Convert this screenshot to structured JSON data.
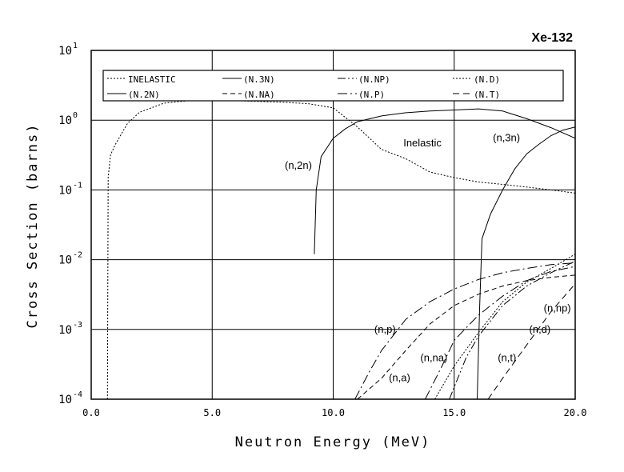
{
  "chart_data": {
    "type": "line",
    "title": "Xe-132",
    "xlabel": "Neutron Energy (MeV)",
    "ylabel": "Cross Section (barns)",
    "xlim": [
      0,
      20
    ],
    "ylim": [
      0.0001,
      10
    ],
    "log_y": true,
    "grid": "major",
    "x_ticks": [
      {
        "value": 0,
        "label": "0.0"
      },
      {
        "value": 5,
        "label": "5.0"
      },
      {
        "value": 10,
        "label": "10.0"
      },
      {
        "value": 15,
        "label": "15.0"
      },
      {
        "value": 20,
        "label": "20.0"
      }
    ],
    "y_ticks": [
      {
        "value": 10,
        "base": "10",
        "exp": "1"
      },
      {
        "value": 1,
        "base": "10",
        "exp": "0"
      },
      {
        "value": 0.1,
        "base": "10",
        "exp": "-1"
      },
      {
        "value": 0.01,
        "base": "10",
        "exp": "-2"
      },
      {
        "value": 0.001,
        "base": "10",
        "exp": "-3"
      },
      {
        "value": 0.0001,
        "base": "10",
        "exp": "-4"
      }
    ],
    "legend_position": "top",
    "legend": [
      {
        "label": "INELASTIC",
        "series": "inelastic"
      },
      {
        "label": "(N.3N)",
        "series": "n3n"
      },
      {
        "label": "(N.NP)",
        "series": "nnp"
      },
      {
        "label": "(N.D)",
        "series": "nd"
      },
      {
        "label": "(N.2N)",
        "series": "n2n"
      },
      {
        "label": "(N.NA)",
        "series": "nna"
      },
      {
        "label": "(N.P)",
        "series": "np"
      },
      {
        "label": "(N.T)",
        "series": "nt"
      }
    ],
    "series": [
      {
        "id": "inelastic",
        "dash": "2,2",
        "points": [
          [
            0.67,
            0.0001
          ],
          [
            0.7,
            0.15
          ],
          [
            0.8,
            0.32
          ],
          [
            1.0,
            0.45
          ],
          [
            1.5,
            0.9
          ],
          [
            2.0,
            1.3
          ],
          [
            3.0,
            1.75
          ],
          [
            4.0,
            1.9
          ],
          [
            5.0,
            1.92
          ],
          [
            6.0,
            1.9
          ],
          [
            7.0,
            1.85
          ],
          [
            8.0,
            1.8
          ],
          [
            9.0,
            1.72
          ],
          [
            10.0,
            1.5
          ],
          [
            11.0,
            0.8
          ],
          [
            12.0,
            0.38
          ],
          [
            13.0,
            0.28
          ],
          [
            14.0,
            0.18
          ],
          [
            15.0,
            0.15
          ],
          [
            16.0,
            0.13
          ],
          [
            17.0,
            0.12
          ],
          [
            18.0,
            0.11
          ],
          [
            19.0,
            0.1
          ],
          [
            20.0,
            0.09
          ]
        ]
      },
      {
        "id": "n2n",
        "dash": "",
        "points": [
          [
            9.22,
            0.012
          ],
          [
            9.3,
            0.1
          ],
          [
            9.5,
            0.3
          ],
          [
            10.0,
            0.55
          ],
          [
            10.5,
            0.75
          ],
          [
            11.0,
            0.95
          ],
          [
            12.0,
            1.15
          ],
          [
            13.0,
            1.28
          ],
          [
            14.0,
            1.35
          ],
          [
            15.0,
            1.4
          ],
          [
            16.0,
            1.45
          ],
          [
            17.0,
            1.35
          ],
          [
            18.0,
            1.05
          ],
          [
            19.0,
            0.78
          ],
          [
            20.0,
            0.55
          ]
        ]
      },
      {
        "id": "n3n",
        "dash": "",
        "points": [
          [
            15.95,
            0.0001
          ],
          [
            16.05,
            0.002
          ],
          [
            16.15,
            0.02
          ],
          [
            16.5,
            0.045
          ],
          [
            17.0,
            0.1
          ],
          [
            17.5,
            0.2
          ],
          [
            18.0,
            0.33
          ],
          [
            18.5,
            0.45
          ],
          [
            19.0,
            0.6
          ],
          [
            19.5,
            0.72
          ],
          [
            20.0,
            0.8
          ]
        ]
      },
      {
        "id": "np",
        "dash": "12,4,2,4",
        "points": [
          [
            10.9,
            0.0001
          ],
          [
            11.5,
            0.00025
          ],
          [
            12.0,
            0.0005
          ],
          [
            13.0,
            0.0014
          ],
          [
            14.0,
            0.0025
          ],
          [
            15.0,
            0.0038
          ],
          [
            16.0,
            0.0052
          ],
          [
            17.0,
            0.0065
          ],
          [
            18.0,
            0.0075
          ],
          [
            19.0,
            0.0085
          ],
          [
            20.0,
            0.009
          ]
        ]
      },
      {
        "id": "nna",
        "dash": "6,4",
        "points": [
          [
            11.0,
            0.0001
          ],
          [
            12.0,
            0.0002
          ],
          [
            13.0,
            0.0005
          ],
          [
            14.0,
            0.0012
          ],
          [
            15.0,
            0.0022
          ],
          [
            16.0,
            0.0032
          ],
          [
            17.0,
            0.0042
          ],
          [
            18.0,
            0.005
          ],
          [
            19.0,
            0.0056
          ],
          [
            20.0,
            0.006
          ]
        ]
      },
      {
        "id": "na",
        "dash": "12,4,2,4",
        "points": [
          [
            13.8,
            0.0001
          ],
          [
            14.5,
            0.0003
          ],
          [
            15.0,
            0.0007
          ],
          [
            16.0,
            0.0016
          ],
          [
            17.0,
            0.003
          ],
          [
            18.0,
            0.005
          ],
          [
            19.0,
            0.0068
          ],
          [
            20.0,
            0.008
          ]
        ]
      },
      {
        "id": "nnp",
        "dash": "10,3,2,3,2,3",
        "points": [
          [
            14.8,
            0.0001
          ],
          [
            15.5,
            0.0004
          ],
          [
            16.0,
            0.0008
          ],
          [
            17.0,
            0.0022
          ],
          [
            18.0,
            0.0042
          ],
          [
            19.0,
            0.0065
          ],
          [
            20.0,
            0.0095
          ]
        ]
      },
      {
        "id": "nd",
        "dash": "2,2",
        "points": [
          [
            14.2,
            0.0001
          ],
          [
            15.0,
            0.0003
          ],
          [
            16.0,
            0.0009
          ],
          [
            17.0,
            0.0025
          ],
          [
            18.0,
            0.0048
          ],
          [
            19.0,
            0.0075
          ],
          [
            20.0,
            0.012
          ]
        ]
      },
      {
        "id": "nt",
        "dash": "8,5",
        "points": [
          [
            16.4,
            0.0001
          ],
          [
            17.0,
            0.0002
          ],
          [
            18.0,
            0.0006
          ],
          [
            19.0,
            0.0018
          ],
          [
            20.0,
            0.0045
          ]
        ]
      }
    ],
    "annotations": [
      {
        "text": "Inelastic",
        "x": 12.9,
        "y": 0.42
      },
      {
        "text": "(n,2n)",
        "x": 8.0,
        "y": 0.2
      },
      {
        "text": "(n,3n)",
        "x": 16.6,
        "y": 0.5
      },
      {
        "text": "(n,p)",
        "x": 11.7,
        "y": 0.0009
      },
      {
        "text": "(n,np)",
        "x": 18.7,
        "y": 0.0018
      },
      {
        "text": "(n,d)",
        "x": 18.1,
        "y": 0.0009
      },
      {
        "text": "(n,na)",
        "x": 13.6,
        "y": 0.00035
      },
      {
        "text": "(n,t)",
        "x": 16.8,
        "y": 0.00035
      },
      {
        "text": "(n,a)",
        "x": 12.3,
        "y": 0.00018
      }
    ]
  }
}
